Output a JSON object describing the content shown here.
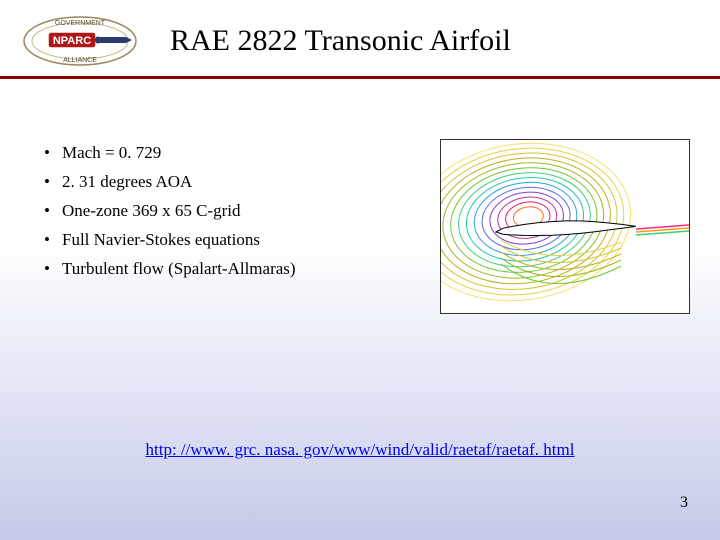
{
  "header": {
    "title": "RAE 2822 Transonic Airfoil",
    "logo_label": "NPARC"
  },
  "bullets": [
    "Mach = 0. 729",
    "2. 31 degrees AOA",
    "One-zone 369 x 65 C-grid",
    "Full Navier-Stokes equations",
    "Turbulent flow (Spalart-Allmaras)"
  ],
  "figure": {
    "type": "cfd-contour",
    "description": "Mach contour around transonic airfoil",
    "background_color": "#ffffff",
    "airfoil": {
      "x": [
        0.0,
        0.05,
        0.1,
        0.2,
        0.3,
        0.4,
        0.5,
        0.6,
        0.7,
        0.8,
        0.9,
        1.0
      ],
      "y_upper": [
        0.0,
        0.024,
        0.033,
        0.046,
        0.054,
        0.058,
        0.059,
        0.055,
        0.046,
        0.033,
        0.018,
        0.0
      ],
      "y_lower": [
        0.0,
        -0.018,
        -0.024,
        -0.032,
        -0.037,
        -0.039,
        -0.038,
        -0.034,
        -0.027,
        -0.018,
        -0.009,
        0.0
      ],
      "fill": "#ffffff",
      "stroke": "#000000"
    },
    "contour_colors_outer_to_inner": [
      "#f6e26a",
      "#e6d24a",
      "#d8c230",
      "#c0b020",
      "#9eb820",
      "#6ec830",
      "#3ed070",
      "#20c8b0",
      "#30a0e0",
      "#5070e8",
      "#8040d0",
      "#c030a0",
      "#e82060",
      "#ff6a1a"
    ],
    "wake_colors": [
      "#ff2a7a",
      "#ff9a1a",
      "#3ed070"
    ],
    "contour_line_width": 1,
    "aspect_ratio": 1.43
  },
  "link": {
    "text": "http: //www. grc. nasa. gov/www/wind/valid/raetaf/raetaf. html",
    "href": "http://www.grc.nasa.gov/www/wind/valid/raetaf/raetaf.html"
  },
  "page_number": "3",
  "colors": {
    "rule": "#8b0000",
    "bg_gradient_top": "#ffffff",
    "bg_gradient_bottom": "#c5c9e8"
  }
}
